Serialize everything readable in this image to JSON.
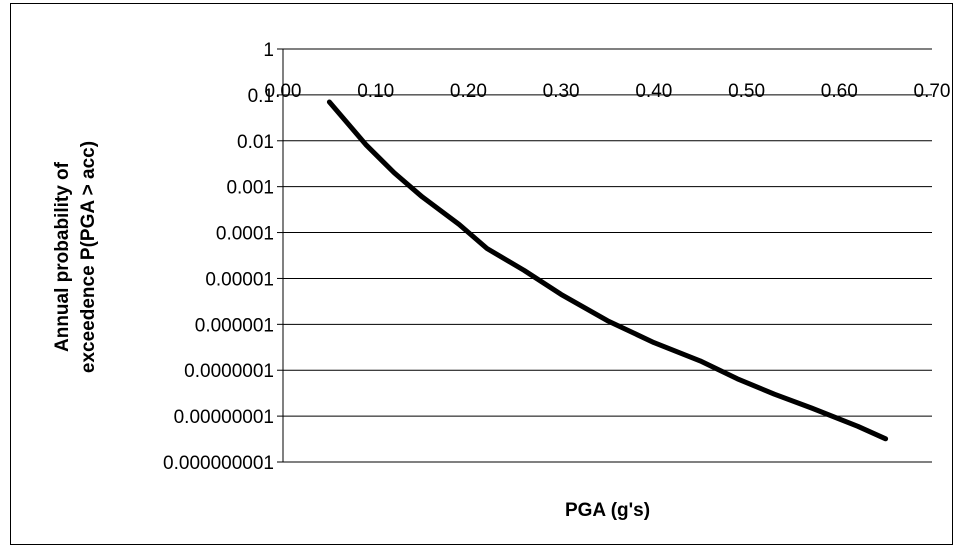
{
  "chart_data": {
    "type": "line",
    "title": "",
    "xlabel": "PGA (g's)",
    "ylabel": "Annual probability of exceedence P(PGA > acc)",
    "ylabel_lines": [
      "Annual probability of",
      "exceedence P(PGA > acc)"
    ],
    "y_scale": "log",
    "xlim": [
      0.0,
      0.7
    ],
    "ylim": [
      1e-09,
      1
    ],
    "x_ticks": [
      "0.00",
      "0.10",
      "0.20",
      "0.30",
      "0.40",
      "0.50",
      "0.60",
      "0.70"
    ],
    "y_ticks": [
      "1",
      "0.1",
      "0.01",
      "0.001",
      "0.0001",
      "0.00001",
      "0.000001",
      "0.0000001",
      "0.00000001",
      "0.000000001"
    ],
    "grid": true,
    "legend": "none",
    "line_color": "#000000",
    "series": [
      {
        "x": [
          0.05,
          0.09,
          0.12,
          0.15,
          0.19,
          0.22,
          0.26,
          0.3,
          0.35,
          0.4,
          0.45,
          0.49,
          0.53,
          0.57,
          0.62,
          0.65
        ],
        "y": [
          0.07,
          0.008,
          0.002,
          0.0006,
          0.00015,
          4.5e-05,
          1.5e-05,
          4.5e-06,
          1.2e-06,
          4e-07,
          1.6e-07,
          6.5e-08,
          3e-08,
          1.5e-08,
          6e-09,
          3.2e-09
        ]
      }
    ]
  }
}
